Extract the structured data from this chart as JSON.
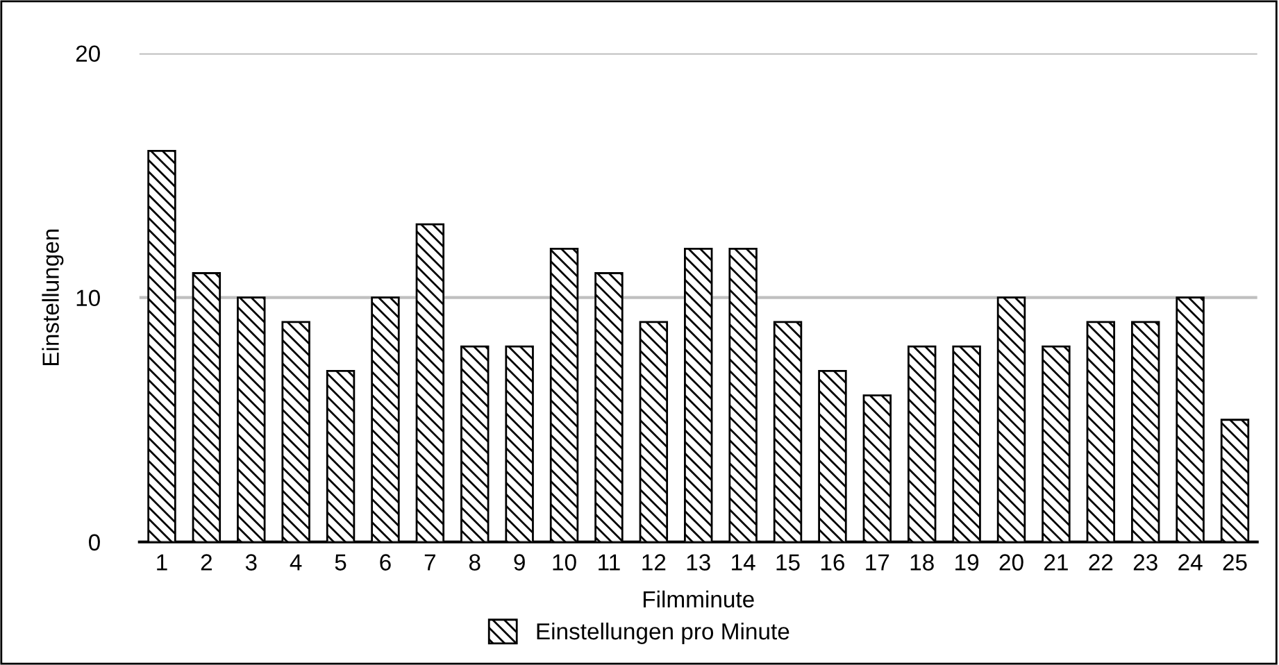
{
  "chart_data": {
    "type": "bar",
    "xlabel": "Filmminute",
    "ylabel": "Einstellungen",
    "categories": [
      "1",
      "2",
      "3",
      "4",
      "5",
      "6",
      "7",
      "8",
      "9",
      "10",
      "11",
      "12",
      "13",
      "14",
      "15",
      "16",
      "17",
      "18",
      "19",
      "20",
      "21",
      "22",
      "23",
      "24",
      "25"
    ],
    "series": [
      {
        "name": "Einstellungen pro Minute",
        "color": "#000000",
        "values": [
          16,
          11,
          10,
          9,
          7,
          10,
          13,
          8,
          8,
          12,
          11,
          9,
          12,
          12,
          9,
          7,
          6,
          8,
          8,
          10,
          8,
          9,
          9,
          10,
          5
        ]
      }
    ],
    "ylim": [
      0,
      20
    ],
    "yticks": [
      0,
      10,
      20
    ],
    "grid": "y",
    "legend": "bottom"
  }
}
